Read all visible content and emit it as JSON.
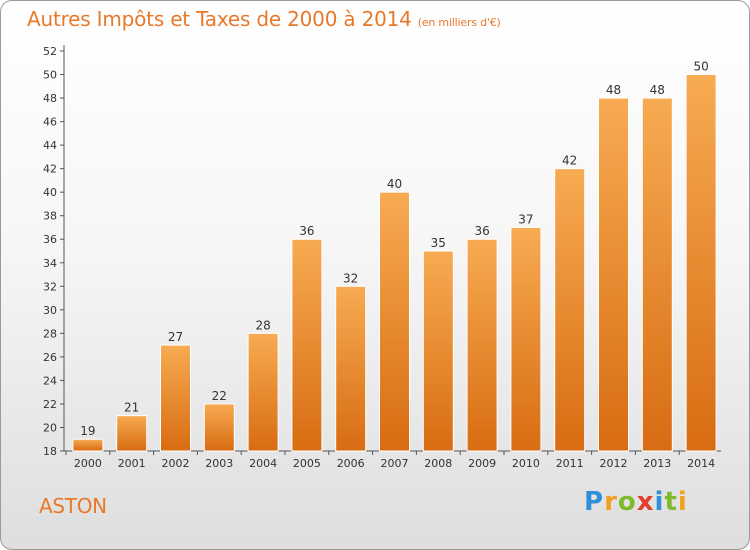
{
  "header": {
    "title": "Autres Impôts et Taxes de 2000 à 2014",
    "subtitle": "(en milliers d'€)"
  },
  "footer": {
    "town": "ASTON",
    "logo_letters": [
      {
        "ch": "P",
        "color": "#2f8fd8"
      },
      {
        "ch": "r",
        "color": "#f0a020"
      },
      {
        "ch": "o",
        "color": "#7dbb2c"
      },
      {
        "ch": "x",
        "color": "#e23d2d"
      },
      {
        "ch": "i",
        "color": "#2f8fd8"
      },
      {
        "ch": "t",
        "color": "#7dbb2c"
      },
      {
        "ch": "i",
        "color": "#f0a020"
      }
    ]
  },
  "colors": {
    "bar_light": "#f7ab52",
    "bar_dark": "#d86c12",
    "text": "#333333",
    "accent": "#e8792a"
  },
  "chart_data": {
    "type": "bar",
    "categories": [
      "2000",
      "2001",
      "2002",
      "2003",
      "2004",
      "2005",
      "2006",
      "2007",
      "2008",
      "2009",
      "2010",
      "2011",
      "2012",
      "2013",
      "2014"
    ],
    "values": [
      19,
      21,
      27,
      22,
      28,
      36,
      32,
      40,
      35,
      36,
      37,
      42,
      48,
      48,
      50
    ],
    "ylim": [
      18,
      52
    ],
    "yticks": [
      18,
      20,
      22,
      24,
      26,
      28,
      30,
      32,
      34,
      36,
      38,
      40,
      42,
      44,
      46,
      48,
      50,
      52
    ],
    "grid": false,
    "xlabel": "",
    "ylabel": ""
  }
}
